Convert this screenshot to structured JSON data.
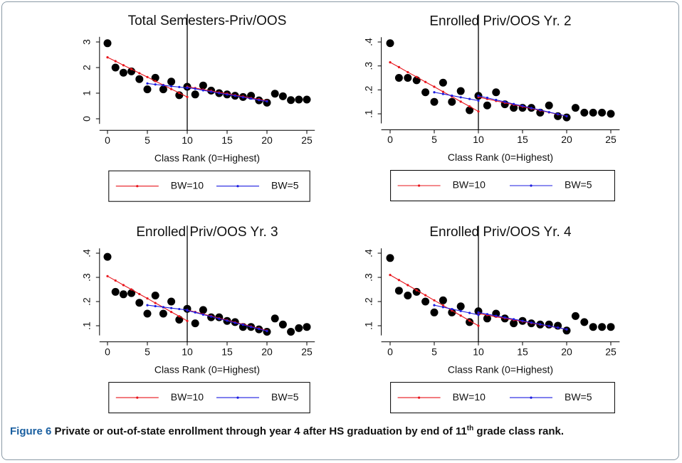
{
  "caption": {
    "label": "Figure 6",
    "text": "Private or out-of-state enrollment through year 4 after HS graduation by end of 11",
    "superscript": "th",
    "text_end": "grade class rank."
  },
  "chart_data": [
    {
      "type": "scatter",
      "title": "Total Semesters-Priv/OOS",
      "x_label": "Class Rank (0=Highest)",
      "color": "#000000",
      "grid": false,
      "legend": "bottom",
      "vline_x": 10,
      "x": [
        0,
        1,
        2,
        3,
        4,
        5,
        6,
        7,
        8,
        9,
        10,
        11,
        12,
        13,
        14,
        15,
        16,
        17,
        18,
        19,
        20,
        21,
        22,
        23,
        24,
        25
      ],
      "values": [
        2.95,
        2.0,
        1.8,
        1.85,
        1.55,
        1.15,
        1.6,
        1.15,
        1.45,
        0.92,
        1.25,
        0.95,
        1.3,
        1.1,
        1.0,
        0.95,
        0.9,
        0.85,
        0.9,
        0.72,
        0.63,
        0.98,
        0.88,
        0.73,
        0.75,
        0.75
      ],
      "xlim": [
        -1,
        26
      ],
      "xticks": [
        0,
        5,
        10,
        15,
        20,
        25
      ],
      "ylim": [
        -0.2,
        3.2
      ],
      "yticks": [
        0,
        1,
        2,
        3
      ],
      "series": [
        {
          "name": "BW=10",
          "color": "#e8141b",
          "pieces": [
            {
              "x": [
                0,
                1,
                2,
                3,
                4,
                5,
                6,
                7,
                8,
                9,
                10
              ],
              "values": [
                2.4,
                2.25,
                2.09,
                1.94,
                1.78,
                1.63,
                1.47,
                1.32,
                1.16,
                1.01,
                0.85
              ]
            },
            {
              "x": [
                10,
                11,
                12,
                13,
                14,
                15,
                16,
                17,
                18,
                19,
                20
              ],
              "values": [
                1.25,
                1.2,
                1.14,
                1.09,
                1.03,
                0.98,
                0.92,
                0.87,
                0.81,
                0.76,
                0.7
              ]
            }
          ]
        },
        {
          "name": "BW=5",
          "color": "#1c1ce0",
          "pieces": [
            {
              "x": [
                5,
                6,
                7,
                8,
                9,
                10
              ],
              "values": [
                1.38,
                1.34,
                1.31,
                1.27,
                1.24,
                1.2
              ]
            },
            {
              "x": [
                10,
                11,
                12,
                13,
                14,
                15,
                16,
                17,
                18,
                19,
                20
              ],
              "values": [
                1.22,
                1.17,
                1.11,
                1.06,
                1.0,
                0.95,
                0.9,
                0.84,
                0.79,
                0.73,
                0.68
              ]
            }
          ]
        }
      ]
    },
    {
      "type": "scatter",
      "title": "Enrolled Priv/OOS Yr. 2",
      "x_label": "Class Rank (0=Highest)",
      "color": "#000000",
      "grid": false,
      "legend": "bottom",
      "vline_x": 10,
      "x": [
        0,
        1,
        2,
        3,
        4,
        5,
        6,
        7,
        8,
        9,
        10,
        11,
        12,
        13,
        14,
        15,
        16,
        17,
        18,
        19,
        20,
        21,
        22,
        23,
        24,
        25
      ],
      "values": [
        0.395,
        0.25,
        0.25,
        0.24,
        0.19,
        0.15,
        0.23,
        0.15,
        0.195,
        0.115,
        0.175,
        0.135,
        0.19,
        0.14,
        0.125,
        0.125,
        0.125,
        0.105,
        0.135,
        0.09,
        0.085,
        0.125,
        0.105,
        0.105,
        0.105,
        0.1
      ],
      "xlim": [
        -1,
        26
      ],
      "xticks": [
        0,
        5,
        10,
        15,
        20,
        25
      ],
      "ylim": [
        0.06,
        0.42
      ],
      "yticks": [
        {
          "value": 0.1,
          "label": ".1"
        },
        {
          "value": 0.2,
          "label": ".2"
        },
        {
          "value": 0.3,
          "label": ".3"
        },
        {
          "value": 0.4,
          "label": ".4"
        }
      ],
      "series": [
        {
          "name": "BW=10",
          "color": "#e8141b",
          "pieces": [
            {
              "x": [
                0,
                1,
                2,
                3,
                4,
                5,
                6,
                7,
                8,
                9,
                10
              ],
              "values": [
                0.315,
                0.295,
                0.274,
                0.254,
                0.233,
                0.213,
                0.192,
                0.172,
                0.151,
                0.131,
                0.11
              ]
            },
            {
              "x": [
                10,
                11,
                12,
                13,
                14,
                15,
                16,
                17,
                18,
                19,
                20
              ],
              "values": [
                0.17,
                0.162,
                0.154,
                0.146,
                0.138,
                0.13,
                0.122,
                0.114,
                0.106,
                0.098,
                0.09
              ]
            }
          ]
        },
        {
          "name": "BW=5",
          "color": "#1c1ce0",
          "pieces": [
            {
              "x": [
                5,
                6,
                7,
                8,
                9,
                10
              ],
              "values": [
                0.19,
                0.183,
                0.176,
                0.169,
                0.162,
                0.155
              ]
            },
            {
              "x": [
                10,
                11,
                12,
                13,
                14,
                15,
                16,
                17,
                18,
                19,
                20
              ],
              "values": [
                0.175,
                0.167,
                0.158,
                0.15,
                0.141,
                0.133,
                0.124,
                0.116,
                0.107,
                0.099,
                0.09
              ]
            }
          ]
        }
      ]
    },
    {
      "type": "scatter",
      "title": "Enrolled Priv/OOS Yr. 3",
      "x_label": "Class Rank (0=Highest)",
      "color": "#000000",
      "grid": false,
      "legend": "bottom",
      "vline_x": 10,
      "x": [
        0,
        1,
        2,
        3,
        4,
        5,
        6,
        7,
        8,
        9,
        10,
        11,
        12,
        13,
        14,
        15,
        16,
        17,
        18,
        19,
        20,
        21,
        22,
        23,
        24,
        25
      ],
      "values": [
        0.385,
        0.24,
        0.23,
        0.235,
        0.195,
        0.15,
        0.225,
        0.15,
        0.2,
        0.125,
        0.17,
        0.11,
        0.165,
        0.135,
        0.135,
        0.12,
        0.115,
        0.095,
        0.095,
        0.085,
        0.075,
        0.13,
        0.105,
        0.075,
        0.09,
        0.095
      ],
      "xlim": [
        -1,
        26
      ],
      "xticks": [
        0,
        5,
        10,
        15,
        20,
        25
      ],
      "ylim": [
        0.06,
        0.42
      ],
      "yticks": [
        {
          "value": 0.1,
          "label": ".1"
        },
        {
          "value": 0.2,
          "label": ".2"
        },
        {
          "value": 0.3,
          "label": ".3"
        },
        {
          "value": 0.4,
          "label": ".4"
        }
      ],
      "series": [
        {
          "name": "BW=10",
          "color": "#e8141b",
          "pieces": [
            {
              "x": [
                0,
                1,
                2,
                3,
                4,
                5,
                6,
                7,
                8,
                9,
                10
              ],
              "values": [
                0.305,
                0.287,
                0.268,
                0.25,
                0.231,
                0.213,
                0.194,
                0.176,
                0.157,
                0.139,
                0.12
              ]
            },
            {
              "x": [
                10,
                11,
                12,
                13,
                14,
                15,
                16,
                17,
                18,
                19,
                20
              ],
              "values": [
                0.165,
                0.157,
                0.148,
                0.14,
                0.131,
                0.123,
                0.114,
                0.106,
                0.097,
                0.089,
                0.08
              ]
            }
          ]
        },
        {
          "name": "BW=5",
          "color": "#1c1ce0",
          "pieces": [
            {
              "x": [
                5,
                6,
                7,
                8,
                9,
                10
              ],
              "values": [
                0.185,
                0.181,
                0.177,
                0.173,
                0.169,
                0.165
              ]
            },
            {
              "x": [
                10,
                11,
                12,
                13,
                14,
                15,
                16,
                17,
                18,
                19,
                20
              ],
              "values": [
                0.163,
                0.155,
                0.146,
                0.138,
                0.129,
                0.121,
                0.112,
                0.104,
                0.095,
                0.087,
                0.078
              ]
            }
          ]
        }
      ]
    },
    {
      "type": "scatter",
      "title": "Enrolled Priv/OOS Yr. 4",
      "x_label": "Class Rank (0=Highest)",
      "color": "#000000",
      "grid": false,
      "legend": "bottom",
      "vline_x": 10,
      "x": [
        0,
        1,
        2,
        3,
        4,
        5,
        6,
        7,
        8,
        9,
        10,
        11,
        12,
        13,
        14,
        15,
        16,
        17,
        18,
        19,
        20,
        21,
        22,
        23,
        24,
        25
      ],
      "values": [
        0.38,
        0.245,
        0.225,
        0.24,
        0.2,
        0.155,
        0.205,
        0.155,
        0.18,
        0.115,
        0.16,
        0.13,
        0.15,
        0.13,
        0.11,
        0.12,
        0.11,
        0.105,
        0.105,
        0.1,
        0.08,
        0.14,
        0.115,
        0.095,
        0.095,
        0.095
      ],
      "xlim": [
        -1,
        26
      ],
      "xticks": [
        0,
        5,
        10,
        15,
        20,
        25
      ],
      "ylim": [
        0.06,
        0.42
      ],
      "yticks": [
        {
          "value": 0.1,
          "label": ".1"
        },
        {
          "value": 0.2,
          "label": ".2"
        },
        {
          "value": 0.3,
          "label": ".3"
        },
        {
          "value": 0.4,
          "label": ".4"
        }
      ],
      "series": [
        {
          "name": "BW=10",
          "color": "#e8141b",
          "pieces": [
            {
              "x": [
                0,
                1,
                2,
                3,
                4,
                5,
                6,
                7,
                8,
                9,
                10
              ],
              "values": [
                0.31,
                0.289,
                0.268,
                0.247,
                0.226,
                0.205,
                0.184,
                0.163,
                0.142,
                0.121,
                0.1
              ]
            },
            {
              "x": [
                10,
                11,
                12,
                13,
                14,
                15,
                16,
                17,
                18,
                19,
                20
              ],
              "values": [
                0.15,
                0.144,
                0.137,
                0.131,
                0.124,
                0.118,
                0.111,
                0.105,
                0.098,
                0.092,
                0.085
              ]
            }
          ]
        },
        {
          "name": "BW=5",
          "color": "#1c1ce0",
          "pieces": [
            {
              "x": [
                5,
                6,
                7,
                8,
                9,
                10
              ],
              "values": [
                0.185,
                0.177,
                0.169,
                0.161,
                0.153,
                0.145
              ]
            },
            {
              "x": [
                10,
                11,
                12,
                13,
                14,
                15,
                16,
                17,
                18,
                19,
                20
              ],
              "values": [
                0.155,
                0.148,
                0.141,
                0.134,
                0.127,
                0.12,
                0.113,
                0.106,
                0.099,
                0.092,
                0.085
              ]
            }
          ]
        }
      ]
    }
  ]
}
